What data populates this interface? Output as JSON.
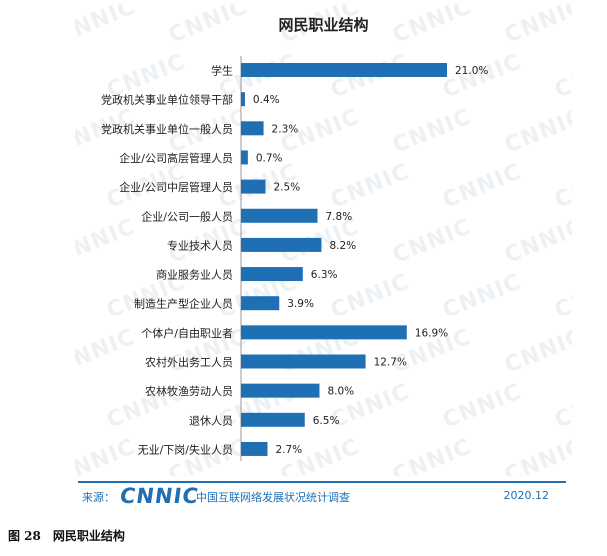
{
  "chart_data": {
    "type": "bar",
    "orientation": "horizontal",
    "title": "网民职业结构",
    "categories": [
      "学生",
      "党政机关事业单位领导干部",
      "党政机关事业单位一般人员",
      "企业/公司高层管理人员",
      "企业/公司中层管理人员",
      "企业/公司一般人员",
      "专业技术人员",
      "商业服务业人员",
      "制造生产型企业人员",
      "个体户/自由职业者",
      "农村外出务工人员",
      "农林牧渔劳动人员",
      "退休人员",
      "无业/下岗/失业人员"
    ],
    "values": [
      21.0,
      0.4,
      2.3,
      0.7,
      2.5,
      7.8,
      8.2,
      6.3,
      3.9,
      16.9,
      12.7,
      8.0,
      6.5,
      2.7
    ],
    "value_labels": [
      "21.0%",
      "0.4%",
      "2.3%",
      "0.7%",
      "2.5%",
      "7.8%",
      "8.2%",
      "6.3%",
      "3.9%",
      "16.9%",
      "12.7%",
      "8.0%",
      "6.5%",
      "2.7%"
    ],
    "xlim": [
      0,
      21.0
    ],
    "grid": false,
    "bar_color": "#1f6fb5"
  },
  "footer": {
    "source_label": "来源：",
    "logo_text": "CNNIC",
    "source_org": "中国互联网络发展状况统计调查",
    "date": "2020.12"
  },
  "watermark": {
    "text": "CNNIC"
  },
  "caption": "图 28　网民职业结构",
  "colors": {
    "accent": "#1f6fb5",
    "watermark": "#eef1f4"
  }
}
